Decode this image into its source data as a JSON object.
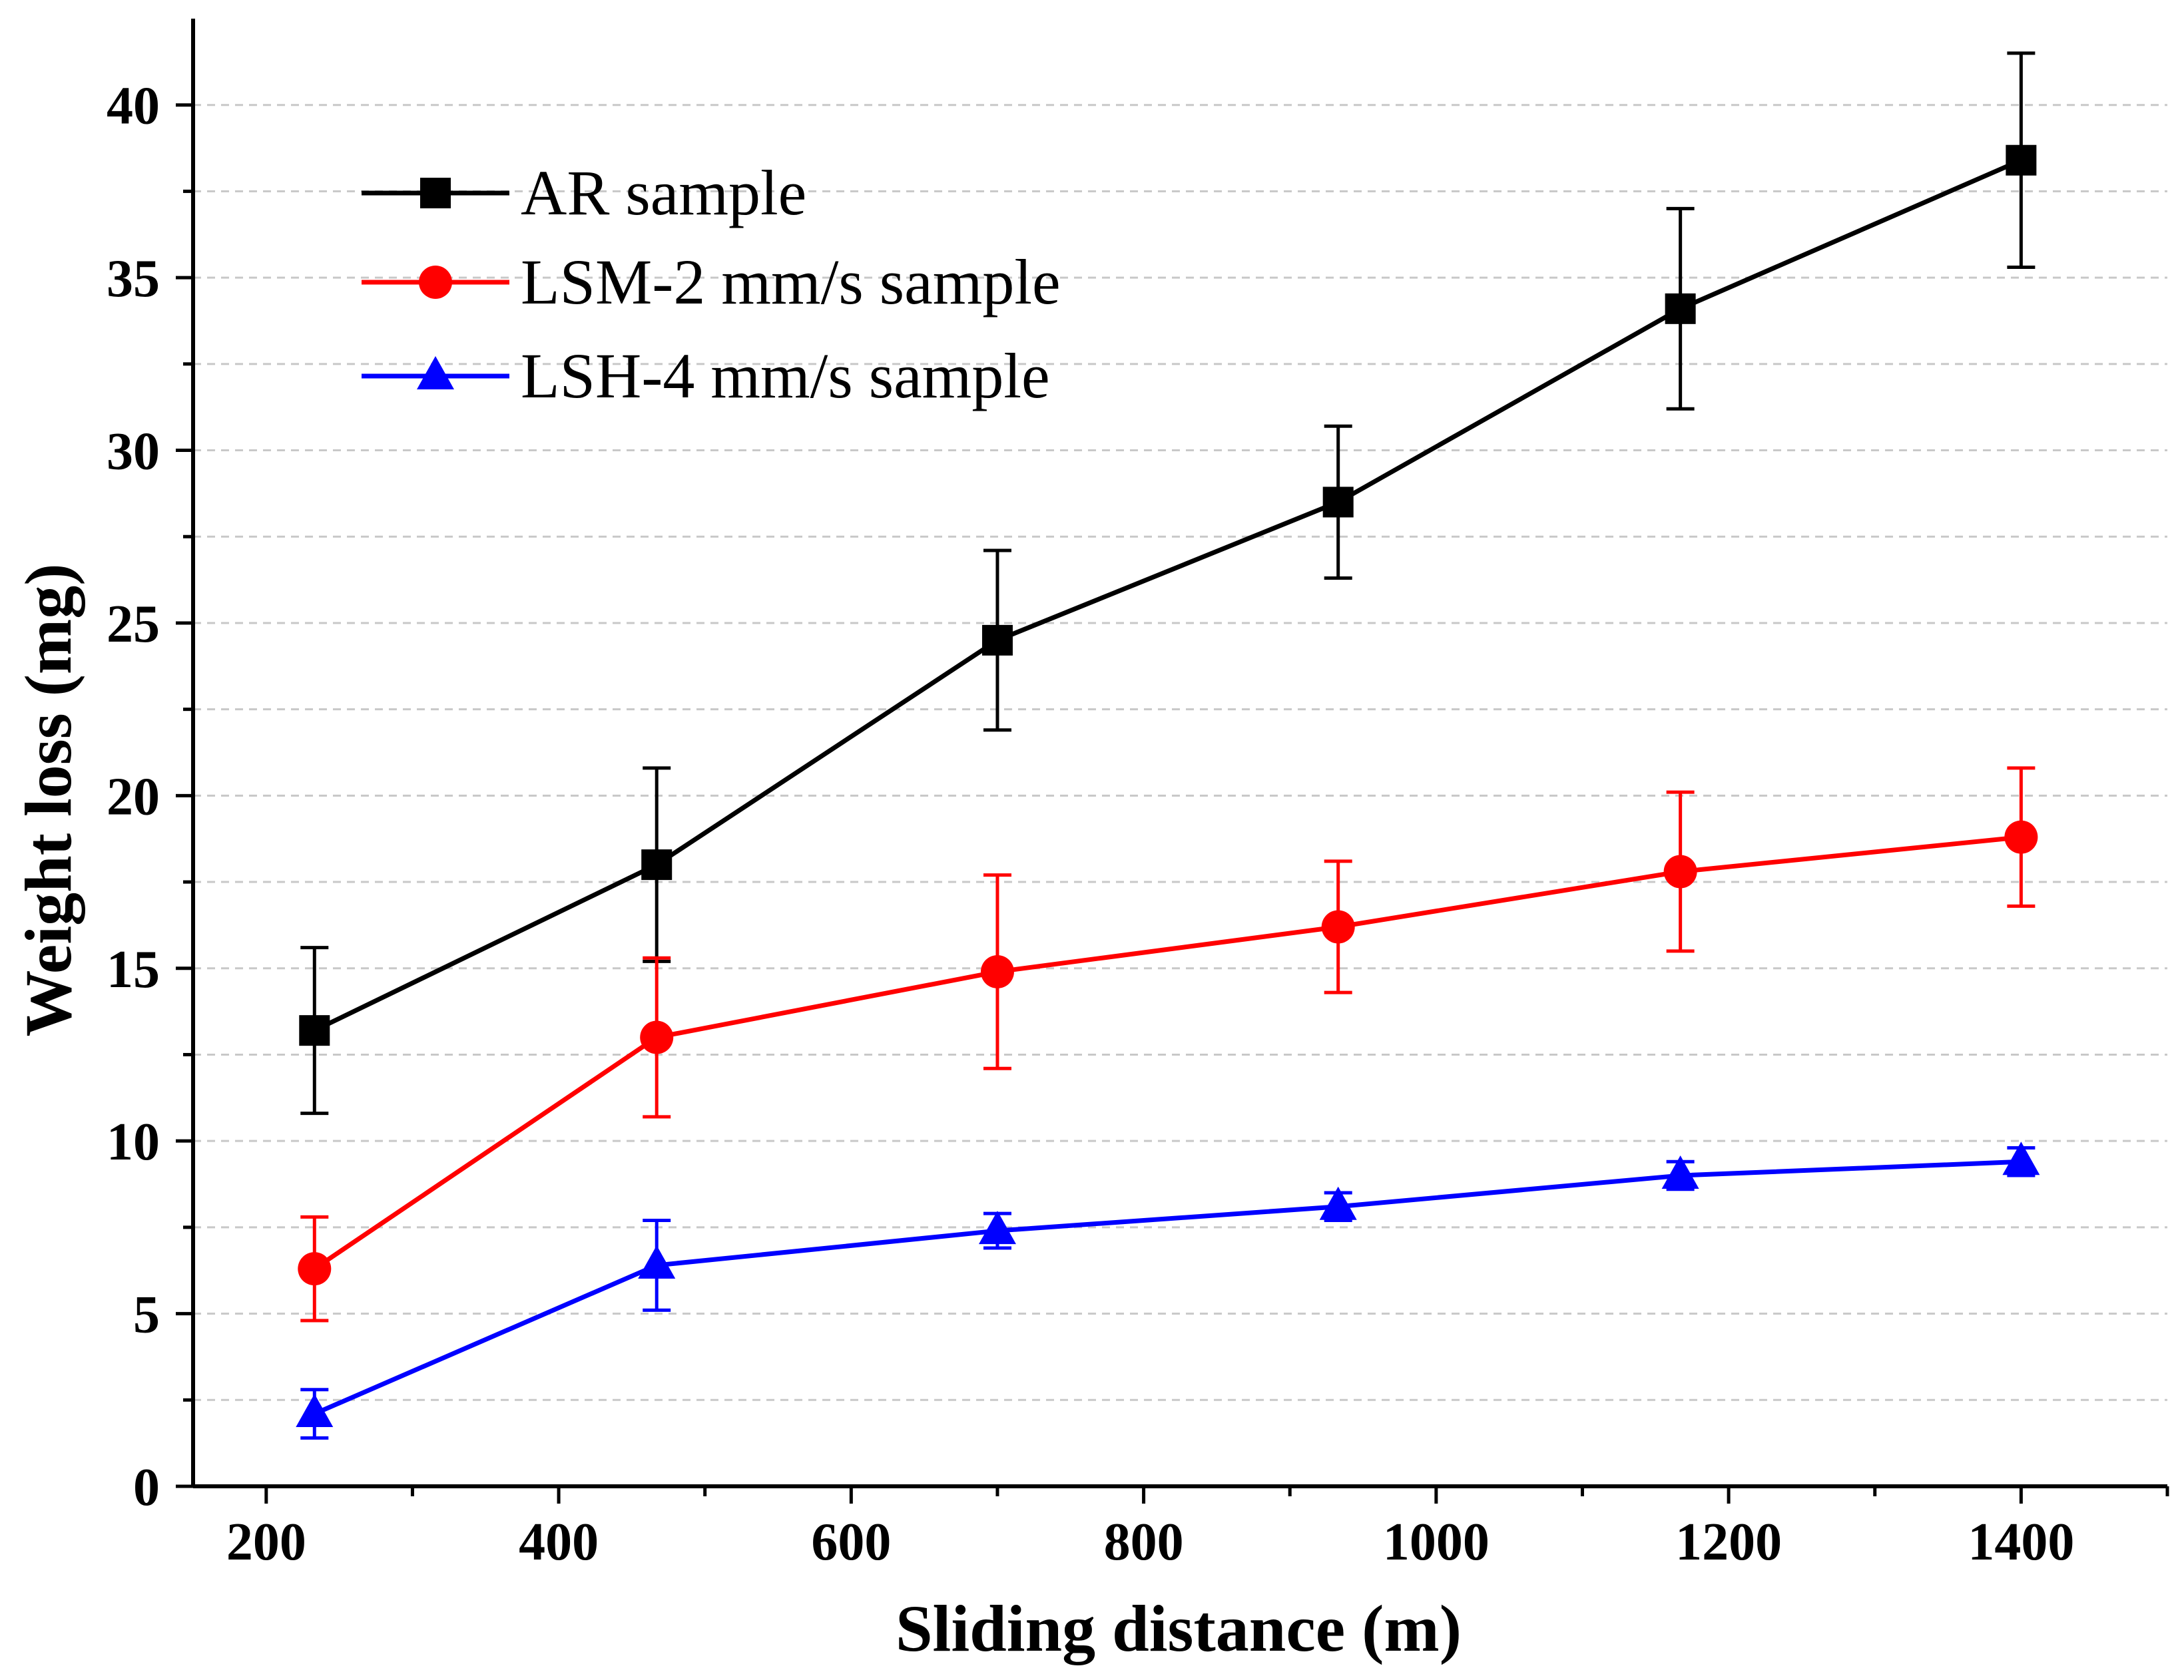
{
  "chart_data": {
    "type": "line",
    "title": "",
    "xlabel": "Sliding distance (m)",
    "ylabel": "Weight loss (mg)",
    "xlim": [
      150,
      1500
    ],
    "ylim": [
      0,
      42.5
    ],
    "xticks": [
      200,
      400,
      600,
      800,
      1000,
      1200,
      1400
    ],
    "yticks": [
      0,
      5,
      10,
      15,
      20,
      25,
      30,
      35,
      40
    ],
    "grid": "horizontal dashed",
    "legend_position": "top-left",
    "x": [
      233,
      467,
      700,
      933,
      1167,
      1400
    ],
    "series": [
      {
        "name": "AR sample",
        "color": "#000000",
        "marker": "square",
        "values": [
          13.2,
          18.0,
          24.5,
          28.5,
          34.1,
          38.4
        ],
        "error": [
          2.4,
          2.8,
          2.6,
          2.2,
          2.9,
          3.1
        ]
      },
      {
        "name": "LSM-2 mm/s sample",
        "color": "#ff0000",
        "marker": "circle",
        "values": [
          6.3,
          13.0,
          14.9,
          16.2,
          17.8,
          18.8
        ],
        "error": [
          1.5,
          2.3,
          2.8,
          1.9,
          2.3,
          2.0
        ]
      },
      {
        "name": "LSH-4 mm/s sample",
        "color": "#0000ff",
        "marker": "triangle",
        "values": [
          2.1,
          6.4,
          7.4,
          8.1,
          9.0,
          9.4
        ],
        "error": [
          0.7,
          1.3,
          0.5,
          0.4,
          0.4,
          0.4
        ]
      }
    ]
  }
}
